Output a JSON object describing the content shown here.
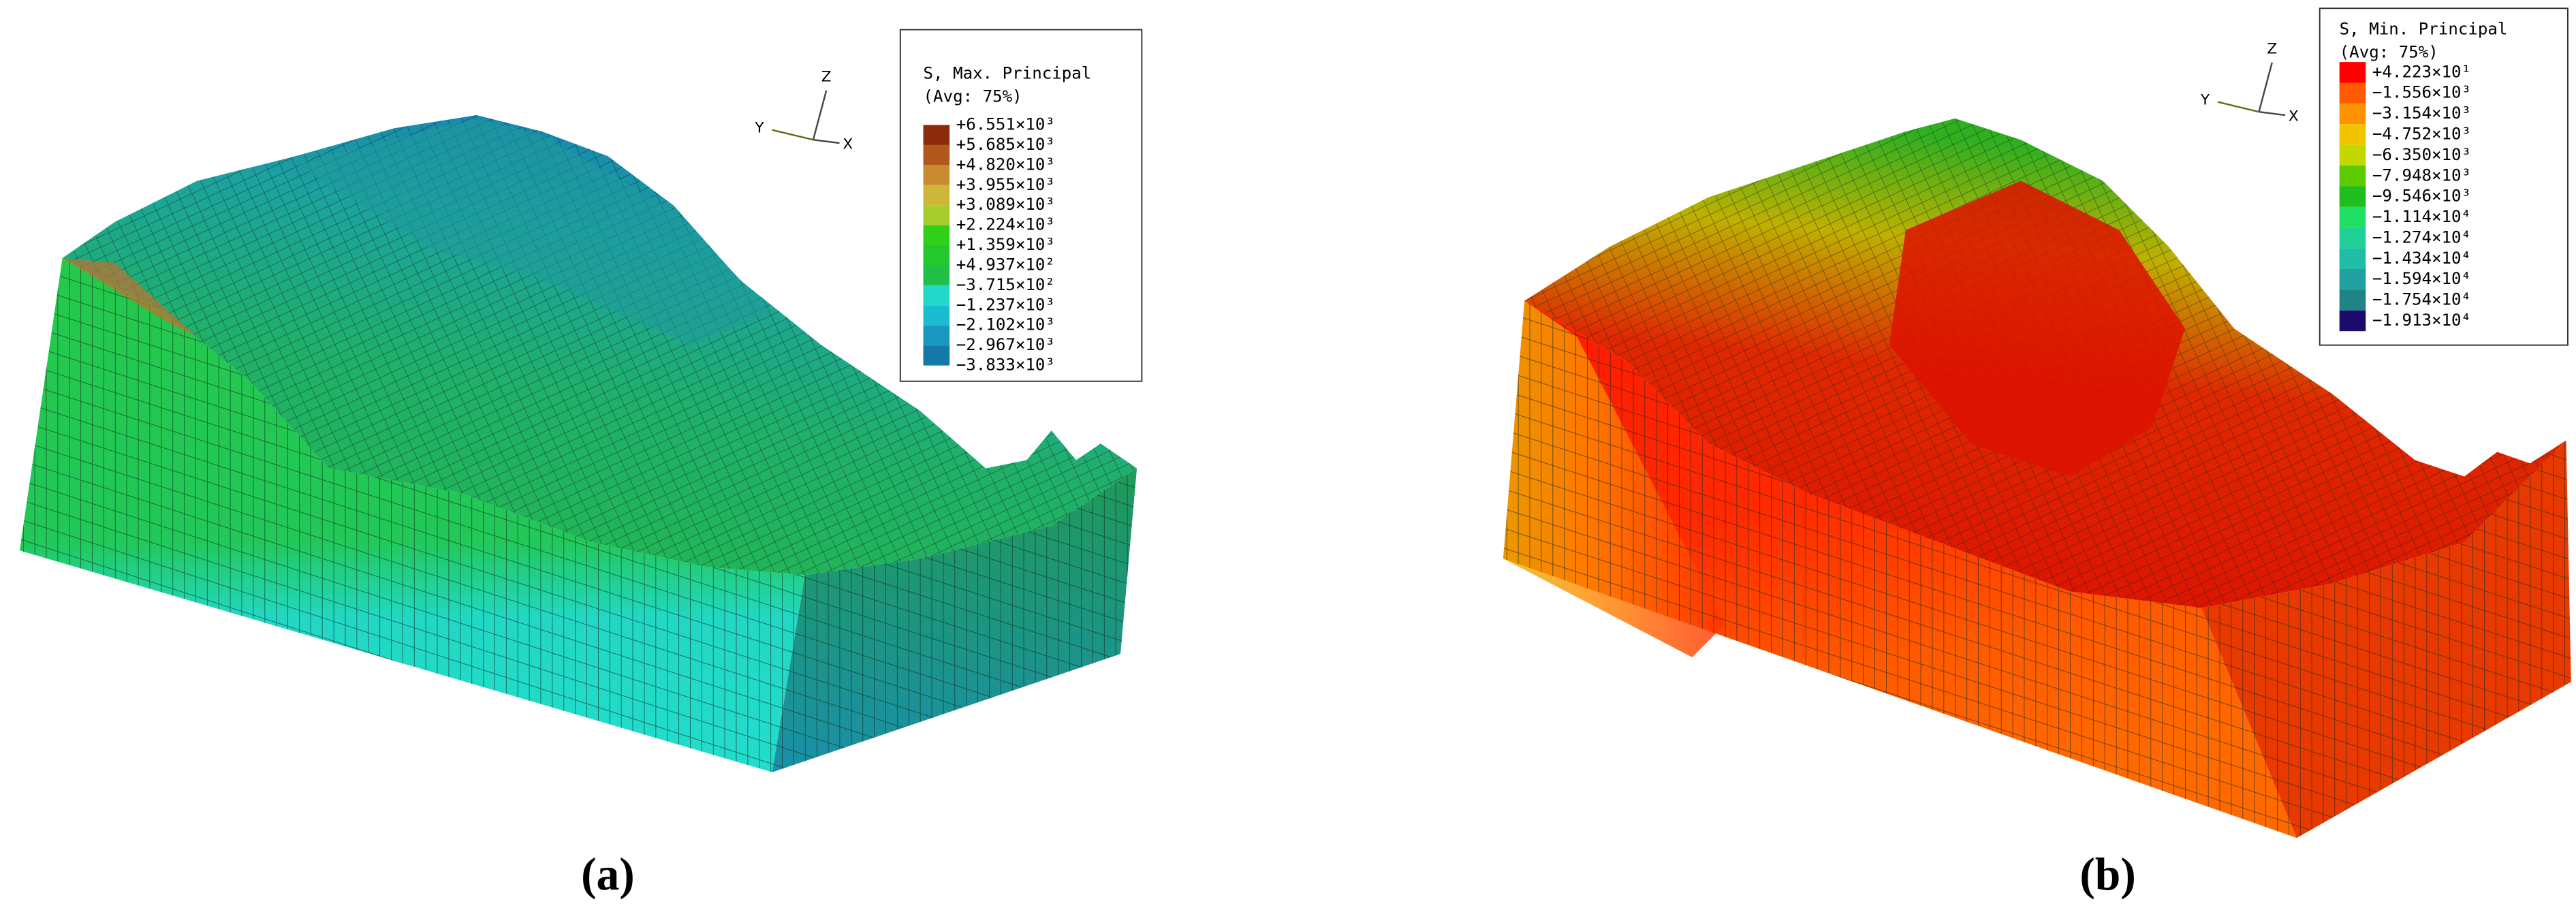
{
  "figure": {
    "panels": [
      {
        "caption": "(a)",
        "axes": {
          "z": "Z",
          "y": "Y",
          "x": "X"
        },
        "legend": {
          "title": "S, Max. Principal",
          "subtitle": "(Avg: 75%)",
          "labels": [
            "+6.551×10³",
            "+5.685×10³",
            "+4.820×10³",
            "+3.955×10³",
            "+3.089×10³",
            "+2.224×10³",
            "+1.359×10³",
            "+4.937×10²",
            "−3.715×10²",
            "−1.237×10³",
            "−2.102×10³",
            "−2.967×10³",
            "−3.833×10³"
          ],
          "colors": [
            "#8b2a0c",
            "#b2581c",
            "#c98a30",
            "#cdb638",
            "#a8cc2c",
            "#30d018",
            "#22c82c",
            "#20c048",
            "#22d8c8",
            "#1cbcd0",
            "#1898c0",
            "#1478a8"
          ]
        }
      },
      {
        "caption": "(b)",
        "axes": {
          "z": "Z",
          "y": "Y",
          "x": "X"
        },
        "legend": {
          "title": "S, Min. Principal",
          "subtitle": "(Avg: 75%)",
          "labels": [
            "+4.223×10¹",
            "−1.556×10³",
            "−3.154×10³",
            "−4.752×10³",
            "−6.350×10³",
            "−7.948×10³",
            "−9.546×10³",
            "−1.114×10⁴",
            "−1.274×10⁴",
            "−1.434×10⁴",
            "−1.594×10⁴",
            "−1.754×10⁴",
            "−1.913×10⁴"
          ],
          "colors": [
            "#ff0000",
            "#ff5a00",
            "#ff9200",
            "#f2c400",
            "#c2d800",
            "#5ccc00",
            "#1ebe1e",
            "#20e064",
            "#20d096",
            "#20bca6",
            "#20a0a0",
            "#1e8484",
            "#1c0a6c"
          ]
        }
      }
    ]
  }
}
